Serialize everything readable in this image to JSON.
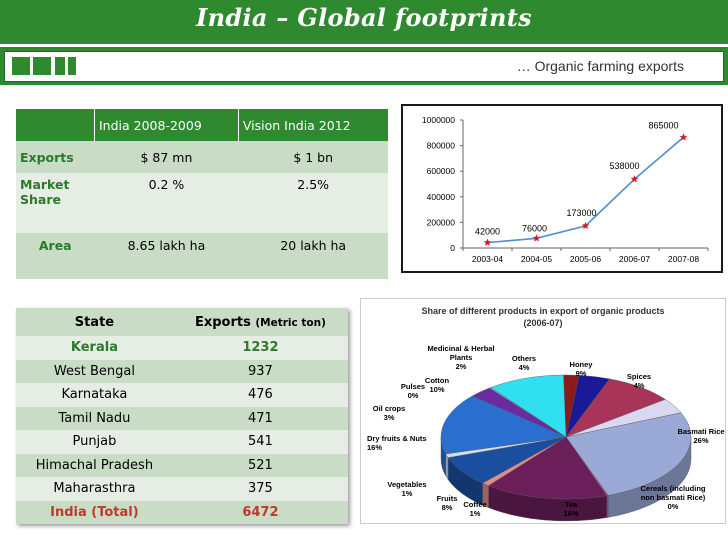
{
  "header": {
    "title": "India – Global footprints",
    "subtitle": "… Organic farming exports",
    "accent": "#2f8a2f"
  },
  "summary_table": {
    "columns": [
      "",
      "India 2008-2009",
      "Vision India 2012"
    ],
    "rows": [
      {
        "label": "Exports",
        "india_2008_09": "$ 87 mn",
        "vision_2012": "$ 1 bn"
      },
      {
        "label": "Market Share",
        "india_2008_09": "0.2 %",
        "vision_2012": "2.5%"
      },
      {
        "label": "Area",
        "india_2008_09": "8.65 lakh ha",
        "vision_2012": "20 lakh ha"
      }
    ]
  },
  "chart_data": [
    {
      "type": "line",
      "title": "",
      "xlabel": "",
      "ylabel": "",
      "categories": [
        "2003-04",
        "2004-05",
        "2005-06",
        "2006-07",
        "2007-08"
      ],
      "values": [
        42000,
        76000,
        173000,
        538000,
        865000
      ],
      "data_labels": [
        "42000",
        "76000",
        "173000",
        "538000",
        "865000"
      ],
      "ylim": [
        0,
        1000000
      ],
      "yticks": [
        "0",
        "200000",
        "400000",
        "600000",
        "800000",
        "1000000"
      ],
      "grid": false,
      "line_color": "#4f8fd1",
      "marker_color": "#d62020"
    },
    {
      "type": "pie",
      "title": "Share of different products in export of organic products",
      "subtitle": "(2006-07)",
      "slices": [
        {
          "label": "Medicinal & Herbal Plants",
          "value": 2,
          "display": "2%",
          "color": "#8b1a1a"
        },
        {
          "label": "Others",
          "value": 4,
          "display": "4%",
          "color": "#1a1a99"
        },
        {
          "label": "Honey",
          "value": 9,
          "display": "9%",
          "color": "#a8345a"
        },
        {
          "label": "Spices",
          "value": 4,
          "display": "4%",
          "color": "#d8d8f0"
        },
        {
          "label": "Basmati Rice",
          "value": 26,
          "display": "26%",
          "color": "#9aa9d6"
        },
        {
          "label": "Cereals (including non basmati Rice)",
          "value": 0,
          "display": "0%",
          "color": "#c060a0"
        },
        {
          "label": "Tea",
          "value": 16,
          "display": "16%",
          "color": "#6a1f5a"
        },
        {
          "label": "Coffee",
          "value": 1,
          "display": "1%",
          "color": "#e08a8a"
        },
        {
          "label": "Fruits",
          "value": 8,
          "display": "8%",
          "color": "#1a4fa0"
        },
        {
          "label": "Vegetables",
          "value": 1,
          "display": "1%",
          "color": "#cfe0f0"
        },
        {
          "label": "Dry fruits & Nuts",
          "value": 16,
          "display": "16%",
          "color": "#2a6fd0"
        },
        {
          "label": "Oil crops",
          "value": 3,
          "display": "3%",
          "color": "#6a2aa0"
        },
        {
          "label": "Pulses",
          "value": 0,
          "display": "0%",
          "color": "#8ed8d8"
        },
        {
          "label": "Cotton",
          "value": 10,
          "display": "10%",
          "color": "#30e0f0"
        }
      ]
    }
  ],
  "state_table": {
    "header": {
      "state": "State",
      "exports": "Exports",
      "unit": "(Metric ton)"
    },
    "rows": [
      {
        "state": "Kerala",
        "value": "1232"
      },
      {
        "state": "West Bengal",
        "value": "937"
      },
      {
        "state": "Karnataka",
        "value": "476"
      },
      {
        "state": "Tamil Nadu",
        "value": "471"
      },
      {
        "state": "Punjab",
        "value": "541"
      },
      {
        "state": "Himachal Pradesh",
        "value": "521"
      },
      {
        "state": "Maharasthra",
        "value": "375"
      },
      {
        "state": "India (Total)",
        "value": "6472"
      }
    ]
  }
}
